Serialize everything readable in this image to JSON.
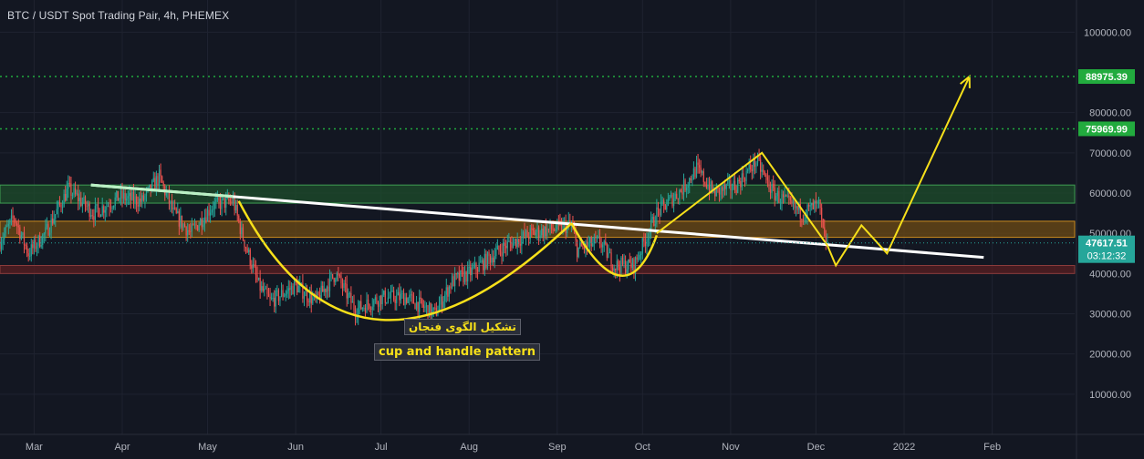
{
  "header": {
    "title": "BTC / USDT Spot Trading Pair, 4h, PHEMEX"
  },
  "annotations": {
    "pattern_fa": "تشکیل الگوی فنجان",
    "pattern_en": "cup and handle pattern"
  },
  "chart_data": {
    "type": "candlestick",
    "title": "BTC / USDT Spot Trading Pair, 4h, PHEMEX",
    "xlabel": "",
    "ylabel": "",
    "ylim": [
      0,
      108000
    ],
    "y_ticks": [
      {
        "value": 10000,
        "label": "10000.00"
      },
      {
        "value": 20000,
        "label": "20000.00"
      },
      {
        "value": 30000,
        "label": "30000.00"
      },
      {
        "value": 40000,
        "label": "40000.00"
      },
      {
        "value": 50000,
        "label": "50000.00"
      },
      {
        "value": 60000,
        "label": "60000.00"
      },
      {
        "value": 70000,
        "label": "70000.00"
      },
      {
        "value": 80000,
        "label": "80000.00"
      },
      {
        "value": 100000,
        "label": "100000.00"
      }
    ],
    "x_ticks": [
      {
        "date": "2021-03-01",
        "label": "Mar"
      },
      {
        "date": "2021-04-01",
        "label": "Apr"
      },
      {
        "date": "2021-05-01",
        "label": "May"
      },
      {
        "date": "2021-06-01",
        "label": "Jun"
      },
      {
        "date": "2021-07-01",
        "label": "Jul"
      },
      {
        "date": "2021-08-01",
        "label": "Aug"
      },
      {
        "date": "2021-09-01",
        "label": "Sep"
      },
      {
        "date": "2021-10-01",
        "label": "Oct"
      },
      {
        "date": "2021-11-01",
        "label": "Nov"
      },
      {
        "date": "2021-12-01",
        "label": "Dec"
      },
      {
        "date": "2022-01-01",
        "label": "2022"
      },
      {
        "date": "2022-02-01",
        "label": "Feb"
      }
    ],
    "x_range": [
      "2021-02-17",
      "2022-03-02"
    ],
    "price_path": [
      [
        "2021-02-17",
        48000
      ],
      [
        "2021-02-22",
        54000
      ],
      [
        "2021-02-27",
        45000
      ],
      [
        "2021-03-05",
        50000
      ],
      [
        "2021-03-13",
        61000
      ],
      [
        "2021-03-22",
        55000
      ],
      [
        "2021-03-31",
        59000
      ],
      [
        "2021-04-08",
        58000
      ],
      [
        "2021-04-14",
        64000
      ],
      [
        "2021-04-19",
        55000
      ],
      [
        "2021-04-25",
        50000
      ],
      [
        "2021-05-03",
        57000
      ],
      [
        "2021-05-10",
        58000
      ],
      [
        "2021-05-13",
        50000
      ],
      [
        "2021-05-19",
        37000
      ],
      [
        "2021-05-23",
        33000
      ],
      [
        "2021-06-01",
        37000
      ],
      [
        "2021-06-08",
        33000
      ],
      [
        "2021-06-15",
        40000
      ],
      [
        "2021-06-22",
        31000
      ],
      [
        "2021-07-01",
        34000
      ],
      [
        "2021-07-10",
        34000
      ],
      [
        "2021-07-20",
        30000
      ],
      [
        "2021-07-26",
        38000
      ],
      [
        "2021-08-01",
        40000
      ],
      [
        "2021-08-14",
        47000
      ],
      [
        "2021-08-23",
        50000
      ],
      [
        "2021-09-06",
        52000
      ],
      [
        "2021-09-08",
        46000
      ],
      [
        "2021-09-16",
        48000
      ],
      [
        "2021-09-21",
        42000
      ],
      [
        "2021-09-28",
        42000
      ],
      [
        "2021-10-06",
        55000
      ],
      [
        "2021-10-15",
        61000
      ],
      [
        "2021-10-20",
        66000
      ],
      [
        "2021-10-26",
        60000
      ],
      [
        "2021-11-03",
        62000
      ],
      [
        "2021-11-10",
        68000
      ],
      [
        "2021-11-16",
        60000
      ],
      [
        "2021-11-26",
        55000
      ],
      [
        "2021-12-02",
        57000
      ],
      [
        "2021-12-04",
        48000
      ],
      [
        "2021-12-05",
        47617.51
      ]
    ],
    "wick_spread": 2800,
    "zones": [
      {
        "name": "green zone",
        "from": 57500,
        "to": 62000,
        "fill": "#1e4d2b",
        "stroke": "#3e9e52"
      },
      {
        "name": "orange zone",
        "from": 49000,
        "to": 53000,
        "fill": "#6e4b14",
        "stroke": "#c98a20"
      },
      {
        "name": "red zone",
        "from": 40000,
        "to": 42000,
        "fill": "#5a1f22",
        "stroke": "#8a3b3b"
      }
    ],
    "trendline": {
      "start": [
        "2021-03-21",
        62000
      ],
      "end": [
        "2022-01-29",
        44000
      ],
      "color": "#ffffff",
      "highlight_until": "2021-05-10"
    },
    "cup": {
      "start": [
        "2021-05-12",
        58000
      ],
      "bottom": [
        "2021-07-01",
        28500
      ],
      "end": [
        "2021-09-06",
        52500
      ],
      "color": "#f7e01a"
    },
    "handle": {
      "start": [
        "2021-09-06",
        52500
      ],
      "bottom": [
        "2021-09-23",
        39500
      ],
      "end": [
        "2021-10-06",
        49500
      ],
      "color": "#f7e01a"
    },
    "rise_line": {
      "points": [
        [
          "2021-10-06",
          50000
        ],
        [
          "2021-11-12",
          70000
        ],
        [
          "2021-12-05",
          47000
        ]
      ],
      "color": "#f7e01a"
    },
    "projection": {
      "points": [
        [
          "2021-12-05",
          47000
        ],
        [
          "2021-12-08",
          42000
        ],
        [
          "2021-12-17",
          52000
        ],
        [
          "2021-12-26",
          45000
        ],
        [
          "2022-01-24",
          89000
        ]
      ],
      "color": "#f7e01a"
    },
    "levels": [
      {
        "value": 88975.39,
        "label": "88975.39",
        "color": "#22ab3e",
        "style": "dotted"
      },
      {
        "value": 75969.99,
        "label": "75969.99",
        "color": "#22ab3e",
        "style": "dotted"
      }
    ],
    "last_price": {
      "value": 47617.51,
      "label": "47617.51",
      "countdown": "03:12:32",
      "color": "#26a69a"
    },
    "grid": true,
    "colors": {
      "background": "#131722",
      "up": "#26a69a",
      "down": "#ef5350",
      "grid": "#1f2330",
      "axis_text": "#b2b5be",
      "annotation": "#f7e01a"
    }
  }
}
